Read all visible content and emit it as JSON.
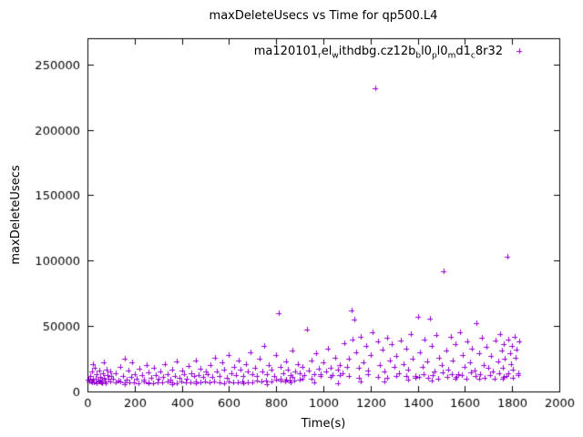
{
  "chart_data": {
    "type": "scatter",
    "title": "maxDeleteUsecs vs Time for qp500.L4",
    "xlabel": "Time(s)",
    "ylabel": "maxDeleteUsecs",
    "xlim": [
      0,
      2000
    ],
    "ylim": [
      0,
      270000
    ],
    "xticks": [
      0,
      200,
      400,
      600,
      800,
      1000,
      1200,
      1400,
      1600,
      1800,
      2000
    ],
    "yticks": [
      0,
      50000,
      100000,
      150000,
      200000,
      250000
    ],
    "grid": false,
    "marker": "plus",
    "marker_color": "#9400d3",
    "legend": {
      "position": "top-center-inside",
      "segments": [
        {
          "text": "ma120101"
        },
        {
          "sub": "r"
        },
        {
          "text": "el"
        },
        {
          "sub": "w"
        },
        {
          "text": "ithdbg.cz12b"
        },
        {
          "sub": "b"
        },
        {
          "text": "l0"
        },
        {
          "sub": "p"
        },
        {
          "text": "l0"
        },
        {
          "sub": "m"
        },
        {
          "text": "d1"
        },
        {
          "sub": "c"
        },
        {
          "text": "8r32"
        }
      ]
    },
    "points": [
      [
        5,
        9000
      ],
      [
        10,
        12000
      ],
      [
        15,
        8000
      ],
      [
        20,
        15000
      ],
      [
        25,
        10000
      ],
      [
        30,
        18000
      ],
      [
        35,
        9500
      ],
      [
        40,
        13000
      ],
      [
        45,
        8500
      ],
      [
        50,
        16000
      ],
      [
        55,
        11000
      ],
      [
        60,
        9000
      ],
      [
        65,
        14000
      ],
      [
        70,
        10500
      ],
      [
        75,
        8000
      ],
      [
        80,
        17000
      ],
      [
        85,
        12500
      ],
      [
        90,
        9800
      ],
      [
        95,
        15500
      ],
      [
        100,
        11500
      ],
      [
        22,
        21000
      ],
      [
        68,
        22000
      ],
      [
        110,
        10000
      ],
      [
        120,
        14000
      ],
      [
        130,
        8500
      ],
      [
        140,
        19000
      ],
      [
        150,
        12000
      ],
      [
        160,
        25000
      ],
      [
        165,
        9000
      ],
      [
        175,
        16000
      ],
      [
        185,
        11000
      ],
      [
        190,
        22000
      ],
      [
        200,
        13000
      ],
      [
        210,
        9500
      ],
      [
        220,
        17500
      ],
      [
        230,
        12500
      ],
      [
        240,
        8800
      ],
      [
        250,
        20000
      ],
      [
        260,
        14500
      ],
      [
        270,
        10200
      ],
      [
        280,
        18000
      ],
      [
        290,
        12800
      ],
      [
        300,
        9600
      ],
      [
        310,
        15000
      ],
      [
        320,
        11000
      ],
      [
        330,
        21000
      ],
      [
        340,
        13500
      ],
      [
        350,
        9200
      ],
      [
        360,
        17000
      ],
      [
        370,
        12000
      ],
      [
        380,
        23000
      ],
      [
        390,
        10500
      ],
      [
        400,
        16000
      ],
      [
        410,
        13000
      ],
      [
        420,
        9800
      ],
      [
        430,
        19500
      ],
      [
        440,
        14000
      ],
      [
        450,
        11500
      ],
      [
        460,
        24000
      ],
      [
        470,
        12500
      ],
      [
        480,
        17500
      ],
      [
        490,
        10800
      ],
      [
        500,
        15000
      ],
      [
        510,
        13000
      ],
      [
        520,
        20000
      ],
      [
        530,
        11000
      ],
      [
        540,
        26000
      ],
      [
        550,
        15500
      ],
      [
        560,
        12000
      ],
      [
        570,
        22000
      ],
      [
        580,
        17000
      ],
      [
        590,
        10500
      ],
      [
        600,
        28000
      ],
      [
        610,
        14000
      ],
      [
        620,
        19000
      ],
      [
        630,
        12500
      ],
      [
        640,
        24000
      ],
      [
        650,
        16500
      ],
      [
        660,
        11800
      ],
      [
        670,
        21000
      ],
      [
        680,
        15000
      ],
      [
        690,
        30000
      ],
      [
        700,
        13500
      ],
      [
        710,
        18000
      ],
      [
        720,
        12000
      ],
      [
        730,
        25000
      ],
      [
        740,
        15000
      ],
      [
        750,
        35000
      ],
      [
        760,
        13000
      ],
      [
        770,
        20000
      ],
      [
        780,
        16500
      ],
      [
        790,
        11500
      ],
      [
        800,
        28000
      ],
      [
        810,
        60000
      ],
      [
        820,
        19000
      ],
      [
        830,
        14000
      ],
      [
        840,
        23000
      ],
      [
        850,
        17000
      ],
      [
        860,
        12500
      ],
      [
        870,
        31000
      ],
      [
        880,
        15500
      ],
      [
        890,
        21000
      ],
      [
        900,
        13800
      ],
      [
        910,
        18500
      ],
      [
        920,
        12800
      ],
      [
        930,
        47000
      ],
      [
        940,
        16000
      ],
      [
        950,
        24000
      ],
      [
        960,
        13500
      ],
      [
        970,
        29000
      ],
      [
        980,
        17500
      ],
      [
        990,
        11800
      ],
      [
        1000,
        22000
      ],
      [
        1010,
        15000
      ],
      [
        1020,
        33000
      ],
      [
        1030,
        18000
      ],
      [
        1040,
        12500
      ],
      [
        1050,
        26000
      ],
      [
        1060,
        16500
      ],
      [
        1070,
        20500
      ],
      [
        1080,
        14000
      ],
      [
        1090,
        37000
      ],
      [
        1100,
        19000
      ],
      [
        1110,
        25000
      ],
      [
        1120,
        62000
      ],
      [
        1125,
        40000
      ],
      [
        1130,
        55000
      ],
      [
        1140,
        30000
      ],
      [
        1150,
        18000
      ],
      [
        1160,
        42000
      ],
      [
        1170,
        22000
      ],
      [
        1180,
        35000
      ],
      [
        1190,
        16000
      ],
      [
        1200,
        28000
      ],
      [
        1210,
        45000
      ],
      [
        1220,
        232000
      ],
      [
        1230,
        38000
      ],
      [
        1240,
        20000
      ],
      [
        1250,
        32000
      ],
      [
        1260,
        15000
      ],
      [
        1270,
        41000
      ],
      [
        1280,
        24000
      ],
      [
        1290,
        36000
      ],
      [
        1300,
        19000
      ],
      [
        1310,
        27000
      ],
      [
        1320,
        14000
      ],
      [
        1330,
        39000
      ],
      [
        1340,
        21000
      ],
      [
        1350,
        33000
      ],
      [
        1360,
        17000
      ],
      [
        1370,
        44000
      ],
      [
        1380,
        25000
      ],
      [
        1390,
        12000
      ],
      [
        1400,
        57000
      ],
      [
        1410,
        30000
      ],
      [
        1420,
        18500
      ],
      [
        1430,
        40000
      ],
      [
        1440,
        23000
      ],
      [
        1450,
        56000
      ],
      [
        1460,
        35000
      ],
      [
        1470,
        15500
      ],
      [
        1480,
        43000
      ],
      [
        1490,
        26000
      ],
      [
        1500,
        20000
      ],
      [
        1510,
        92000
      ],
      [
        1520,
        31000
      ],
      [
        1530,
        17000
      ],
      [
        1540,
        42000
      ],
      [
        1550,
        24000
      ],
      [
        1560,
        36000
      ],
      [
        1570,
        13500
      ],
      [
        1580,
        45000
      ],
      [
        1590,
        28000
      ],
      [
        1600,
        19000
      ],
      [
        1610,
        38000
      ],
      [
        1620,
        22000
      ],
      [
        1630,
        33000
      ],
      [
        1640,
        16000
      ],
      [
        1650,
        52000
      ],
      [
        1660,
        29000
      ],
      [
        1670,
        41000
      ],
      [
        1680,
        20000
      ],
      [
        1690,
        34000
      ],
      [
        1700,
        18000
      ],
      [
        1710,
        27000
      ],
      [
        1720,
        15000
      ],
      [
        1730,
        39000
      ],
      [
        1740,
        23000
      ],
      [
        1750,
        44000
      ],
      [
        1755,
        31000
      ],
      [
        1760,
        18000
      ],
      [
        1765,
        36000
      ],
      [
        1770,
        25000
      ],
      [
        1775,
        12000
      ],
      [
        1780,
        103000
      ],
      [
        1785,
        40000
      ],
      [
        1790,
        29000
      ],
      [
        1795,
        21000
      ],
      [
        1800,
        35000
      ],
      [
        1805,
        16500
      ],
      [
        1810,
        42000
      ],
      [
        1815,
        26000
      ],
      [
        1820,
        32000
      ],
      [
        1825,
        14000
      ],
      [
        1830,
        38000
      ],
      [
        60,
        6000
      ],
      [
        160,
        5500
      ],
      [
        260,
        6500
      ],
      [
        360,
        5800
      ],
      [
        460,
        6200
      ],
      [
        560,
        7000
      ],
      [
        660,
        6300
      ],
      [
        760,
        5600
      ],
      [
        860,
        6800
      ],
      [
        960,
        7200
      ],
      [
        1060,
        6000
      ],
      [
        1160,
        8000
      ],
      [
        1260,
        7500
      ],
      [
        1360,
        9000
      ],
      [
        1460,
        8500
      ],
      [
        1560,
        9500
      ],
      [
        1660,
        10000
      ],
      [
        1760,
        9800
      ],
      [
        8,
        7500
      ],
      [
        18,
        6800
      ],
      [
        28,
        7200
      ],
      [
        38,
        6500
      ],
      [
        48,
        7800
      ],
      [
        58,
        7000
      ],
      [
        78,
        6600
      ],
      [
        98,
        7400
      ],
      [
        118,
        6900
      ],
      [
        138,
        7600
      ],
      [
        158,
        7100
      ],
      [
        178,
        6700
      ],
      [
        198,
        7300
      ],
      [
        218,
        6400
      ],
      [
        238,
        7700
      ],
      [
        258,
        7000
      ],
      [
        278,
        6600
      ],
      [
        298,
        7200
      ],
      [
        318,
        6800
      ],
      [
        338,
        7500
      ],
      [
        358,
        7100
      ],
      [
        378,
        6500
      ],
      [
        398,
        7900
      ],
      [
        418,
        7300
      ],
      [
        438,
        6700
      ],
      [
        458,
        7600
      ],
      [
        478,
        7000
      ],
      [
        498,
        7400
      ],
      [
        518,
        6900
      ],
      [
        538,
        7700
      ],
      [
        558,
        7200
      ],
      [
        578,
        6600
      ],
      [
        598,
        7500
      ],
      [
        618,
        7100
      ],
      [
        638,
        6800
      ],
      [
        658,
        7900
      ],
      [
        678,
        7300
      ],
      [
        698,
        6700
      ],
      [
        718,
        8200
      ],
      [
        738,
        7800
      ],
      [
        758,
        8500
      ],
      [
        778,
        8000
      ],
      [
        798,
        8800
      ],
      [
        818,
        8300
      ],
      [
        838,
        7900
      ],
      [
        858,
        8600
      ],
      [
        878,
        8100
      ],
      [
        898,
        8700
      ],
      [
        1405,
        11000
      ],
      [
        1425,
        13500
      ],
      [
        1445,
        10500
      ],
      [
        1465,
        12800
      ],
      [
        1485,
        9800
      ],
      [
        1505,
        14500
      ],
      [
        1525,
        11200
      ],
      [
        1545,
        13000
      ],
      [
        1565,
        10800
      ],
      [
        1585,
        12200
      ],
      [
        1605,
        9500
      ],
      [
        1625,
        14800
      ],
      [
        1645,
        11600
      ],
      [
        1665,
        13400
      ],
      [
        1685,
        10200
      ],
      [
        1705,
        12600
      ],
      [
        1725,
        9900
      ],
      [
        1745,
        14200
      ],
      [
        1765,
        11400
      ],
      [
        1785,
        13800
      ],
      [
        1805,
        10600
      ],
      [
        1825,
        12400
      ],
      [
        820,
        10000
      ],
      [
        840,
        9000
      ],
      [
        870,
        11000
      ],
      [
        910,
        10000
      ],
      [
        950,
        9500
      ],
      [
        990,
        13000
      ],
      [
        1030,
        10800
      ],
      [
        1070,
        12300
      ],
      [
        1110,
        11700
      ],
      [
        1150,
        10300
      ],
      [
        1190,
        12900
      ],
      [
        1230,
        11100
      ],
      [
        1270,
        10700
      ],
      [
        1310,
        12100
      ],
      [
        1350,
        11900
      ],
      [
        1390,
        10100
      ]
    ]
  },
  "colors": {
    "background": "#ffffff",
    "axis": "#000000",
    "points": "#9400d3",
    "text": "#000000"
  }
}
